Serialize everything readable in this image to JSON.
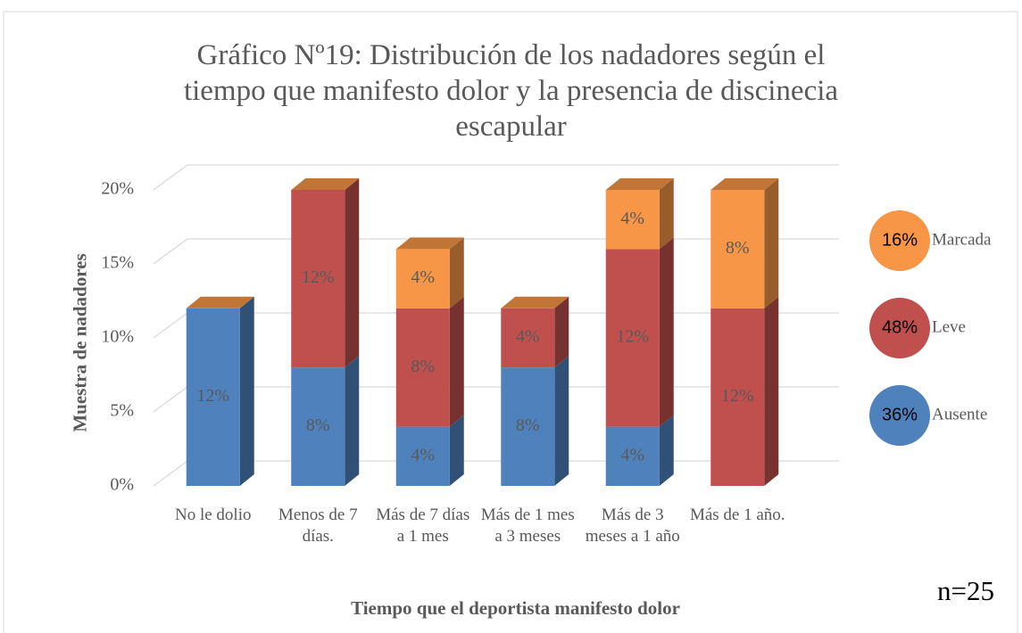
{
  "chart_data": {
    "type": "bar3d_stacked",
    "title": "Gráfico Nº19: Distribución  de los nadadores según el tiempo que manifesto dolor y la presencia de discinecia escapular",
    "xlabel": "Tiempo que el deportista manifesto dolor",
    "ylabel": "Muestra de nadadores",
    "annotation": "n=25",
    "categories": [
      "No le dolio",
      "Menos de 7 días.",
      "Más de 7 días a 1 mes",
      "Más de 1 mes a 3 meses",
      "Más de 3 meses a 1 año",
      "Más de 1 año."
    ],
    "series": [
      {
        "name": "Ausente",
        "color": "#4f81bd",
        "values": [
          12,
          8,
          4,
          8,
          4,
          0
        ],
        "value_labels": [
          "12%",
          "8%",
          "4%",
          "8%",
          "4%",
          null
        ],
        "total_label": "36%"
      },
      {
        "name": "Leve",
        "color": "#c0504d",
        "values": [
          0,
          12,
          8,
          4,
          12,
          12
        ],
        "value_labels": [
          null,
          "12%",
          "8%",
          "4%",
          "12%",
          "12%"
        ],
        "total_label": "48%"
      },
      {
        "name": "Marcada",
        "color": "#f79646",
        "values": [
          0,
          0,
          4,
          0,
          4,
          8
        ],
        "value_labels": [
          null,
          null,
          "4%",
          null,
          "4%",
          "8%"
        ],
        "total_label": "16%"
      }
    ],
    "ylim": [
      0,
      20
    ],
    "yticks": [
      {
        "value": 0,
        "label": "0%"
      },
      {
        "value": 5,
        "label": "5%"
      },
      {
        "value": 10,
        "label": "10%"
      },
      {
        "value": 15,
        "label": "15%"
      },
      {
        "value": 20,
        "label": "20%"
      }
    ],
    "grid": true
  }
}
